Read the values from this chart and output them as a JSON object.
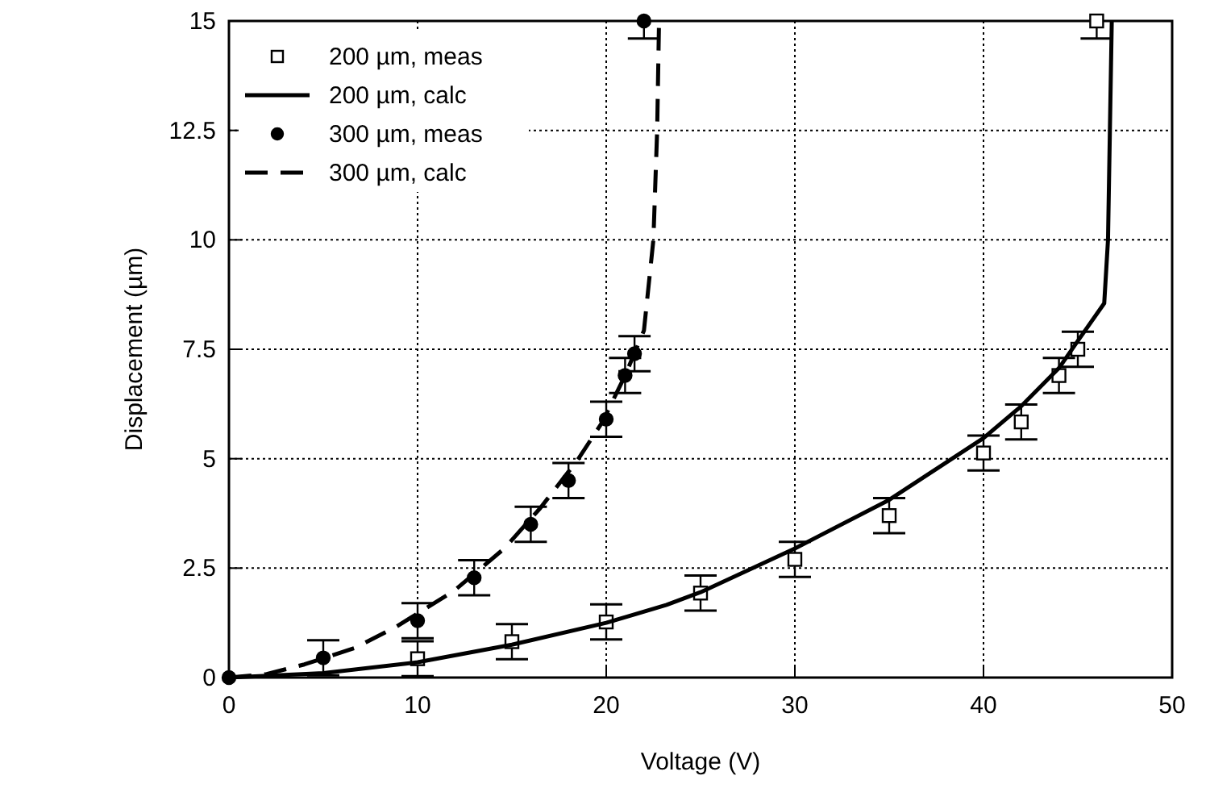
{
  "chart_data": {
    "type": "scatter",
    "xlabel": "Voltage  (V)",
    "ylabel": "Displacement  (µm)",
    "xlim": [
      0,
      50
    ],
    "xticks": [
      0,
      10,
      20,
      30,
      40,
      50
    ],
    "ylim": [
      0,
      15
    ],
    "yticks": [
      0,
      2.5,
      5,
      7.5,
      10,
      12.5,
      15
    ],
    "grid": true,
    "legend": "top left",
    "series": [
      {
        "name": "200 µm, meas",
        "marker": "square",
        "color": "#000000",
        "x": [
          10,
          15,
          20,
          25,
          30,
          35,
          40,
          42,
          44,
          45,
          46
        ],
        "values": [
          0.43,
          0.82,
          1.27,
          1.93,
          2.7,
          3.7,
          5.13,
          5.84,
          6.9,
          7.5,
          15
        ],
        "errors": [
          0.4,
          0.4,
          0.4,
          0.4,
          0.4,
          0.4,
          0.4,
          0.4,
          0.4,
          0.4,
          [
            14.6,
            15
          ]
        ]
      },
      {
        "name": "200 µm, calc",
        "type": "line",
        "line_style": "solid",
        "color": "#000000",
        "x": [
          0,
          5,
          10,
          15,
          20,
          23.2,
          25,
          30,
          35,
          40,
          42,
          44,
          45,
          46.4,
          46.6,
          46.7,
          46.8
        ],
        "values": [
          0,
          0.1,
          0.35,
          0.75,
          1.25,
          1.66,
          1.95,
          2.95,
          4.06,
          5.47,
          6.2,
          7.07,
          7.69,
          8.55,
          10,
          12.5,
          15
        ]
      },
      {
        "name": "300 µm, meas",
        "marker": "circle",
        "color": "#000000",
        "x": [
          0,
          5,
          10,
          13,
          16,
          18,
          20,
          21,
          21.5,
          22
        ],
        "values": [
          0,
          0.45,
          1.3,
          2.28,
          3.5,
          4.5,
          5.9,
          6.9,
          7.4,
          15
        ],
        "errors": [
          null,
          0.4,
          0.4,
          0.4,
          0.4,
          0.4,
          0.4,
          0.4,
          0.4,
          [
            14.6,
            15
          ]
        ]
      },
      {
        "name": "300 µm, calc",
        "type": "line",
        "line_style": "dashed",
        "color": "#000000",
        "x": [
          0,
          2,
          4,
          6.7,
          8.9,
          11.9,
          14.6,
          16.5,
          18.5,
          19.8,
          21,
          22,
          22.5,
          22.7,
          22.8
        ],
        "values": [
          0,
          0.08,
          0.3,
          0.68,
          1.17,
          1.97,
          2.95,
          3.87,
          4.98,
          5.84,
          6.9,
          7.93,
          10,
          12.5,
          15
        ]
      }
    ]
  }
}
